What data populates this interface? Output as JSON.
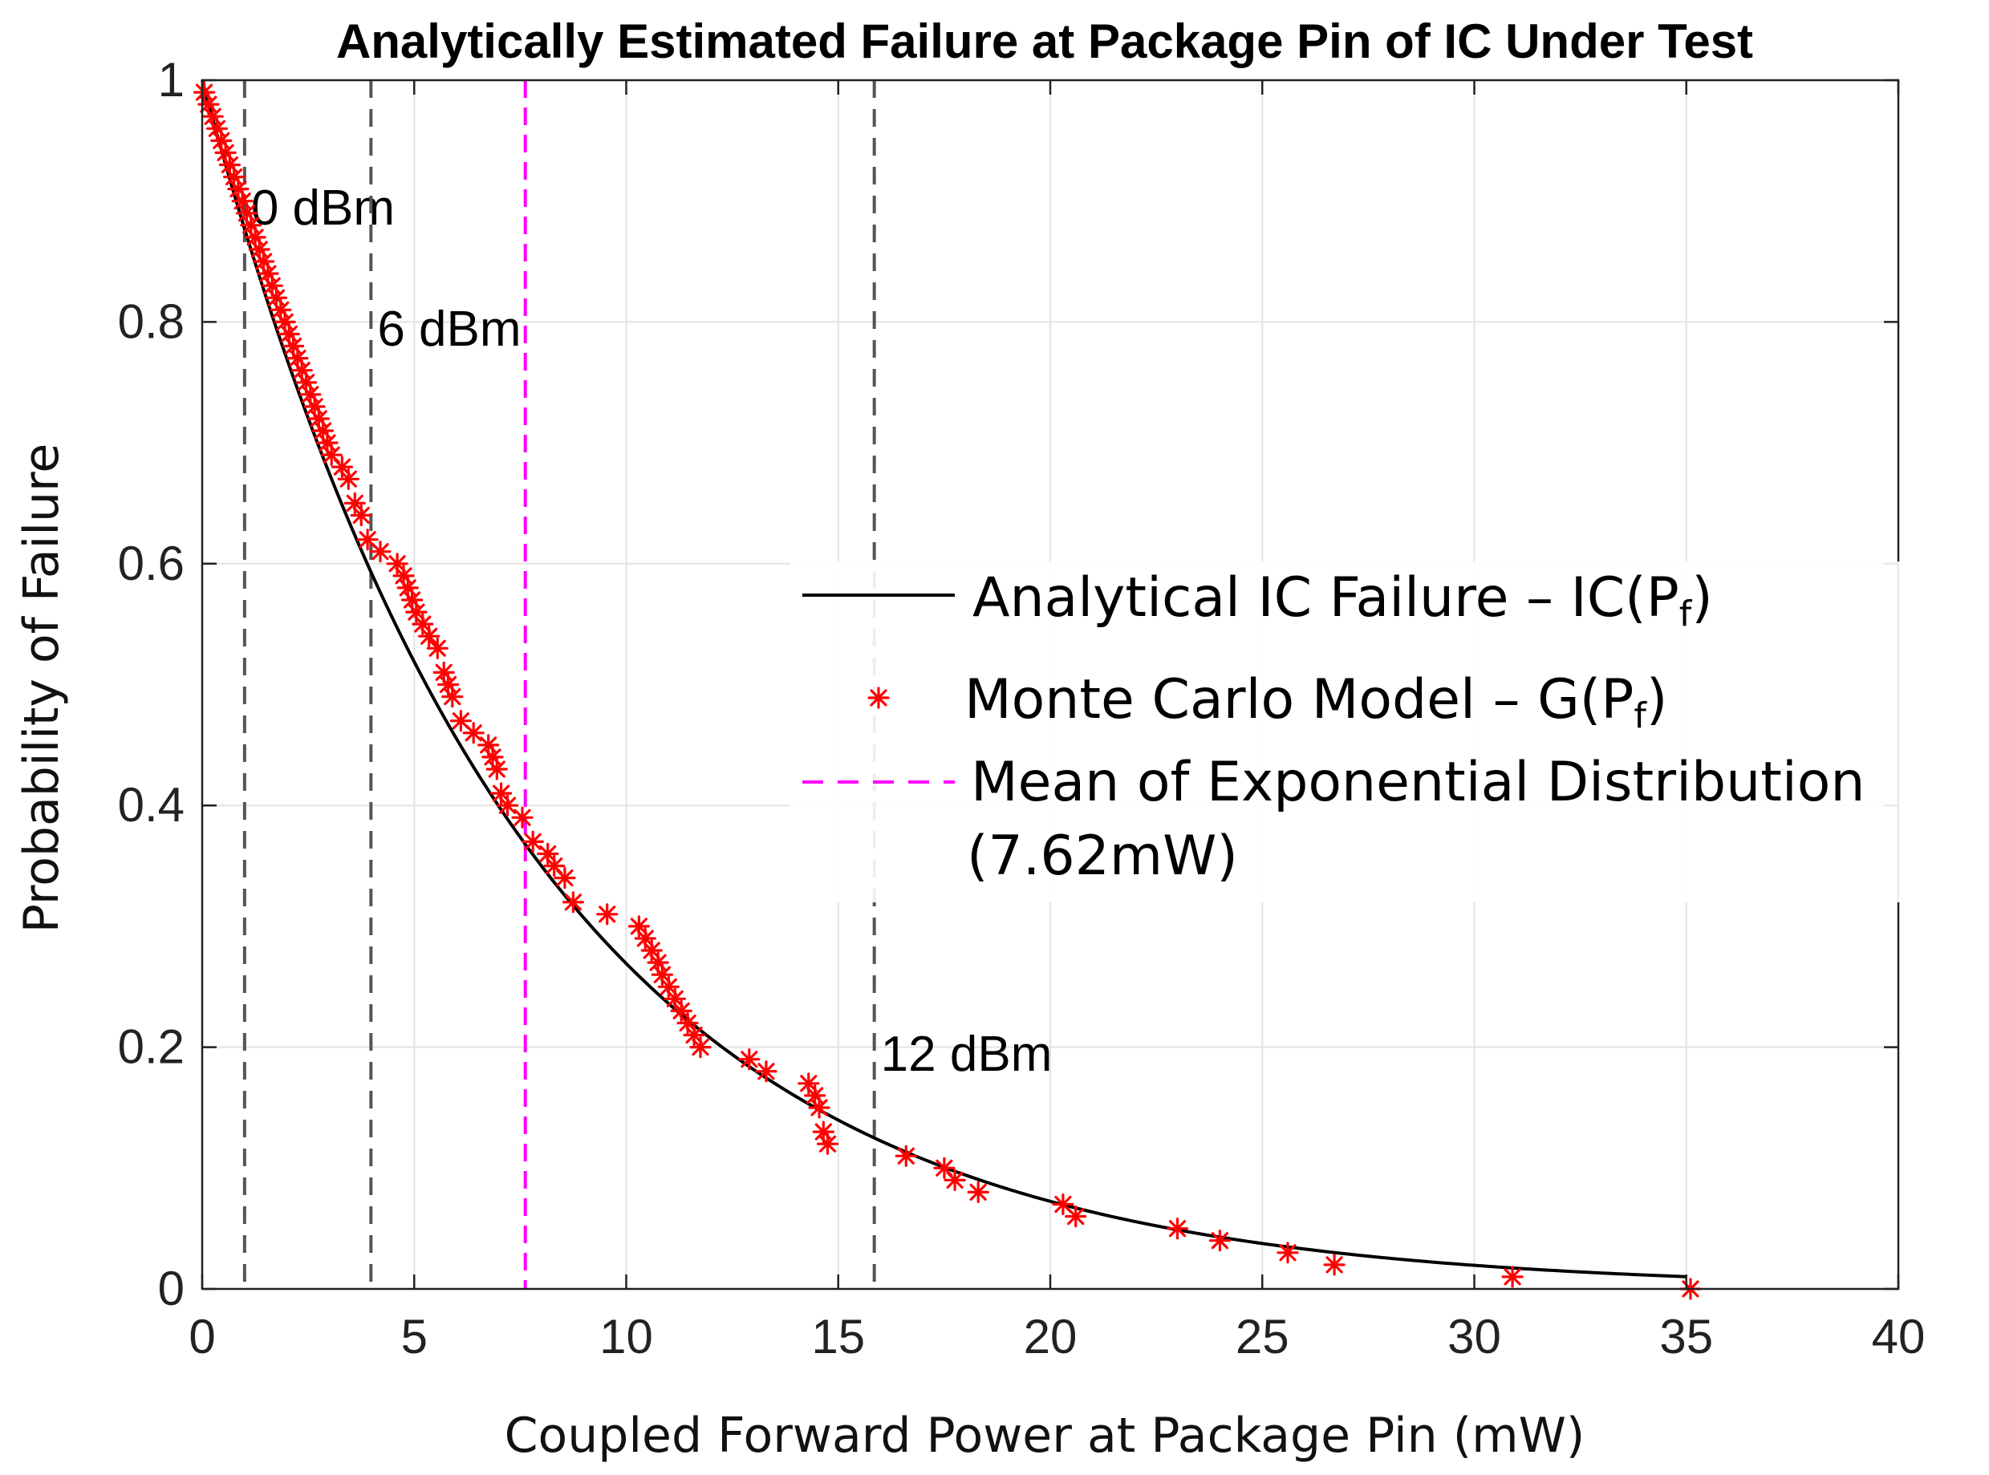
{
  "chart_data": {
    "type": "line",
    "title": "Analytically Estimated Failure at Package Pin of IC Under Test",
    "xlabel": "Coupled Forward Power at Package Pin (mW)",
    "ylabel": "Probability of Failure",
    "xlim": [
      0,
      40
    ],
    "ylim": [
      0,
      1
    ],
    "xticks": [
      0,
      5,
      10,
      15,
      20,
      25,
      30,
      35,
      40
    ],
    "yticks": [
      0,
      0.2,
      0.4,
      0.6,
      0.8,
      1
    ],
    "ytick_labels": [
      "0",
      "0.2",
      "0.4",
      "0.6",
      "0.8",
      "1"
    ],
    "grid": true,
    "legend_position": "center-right",
    "analytical": {
      "name": "Analytical IC Failure – IC(P",
      "subscript": "f",
      "suffix": ")",
      "function": "exp(-x/7.62)",
      "mean_mW": 7.62,
      "x_range": [
        0,
        35
      ],
      "color": "#000000"
    },
    "monte_carlo": {
      "name": "Monte Carlo Model – G(P",
      "subscript": "f",
      "suffix": ")",
      "color": "#ff0000",
      "x": [
        0.05,
        0.15,
        0.25,
        0.35,
        0.45,
        0.55,
        0.65,
        0.75,
        0.85,
        0.95,
        1.05,
        1.15,
        1.25,
        1.35,
        1.45,
        1.55,
        1.65,
        1.75,
        1.85,
        1.95,
        2.05,
        2.15,
        2.25,
        2.35,
        2.45,
        2.55,
        2.65,
        2.75,
        2.85,
        2.95,
        3.05,
        3.3,
        3.45,
        3.6,
        3.75,
        3.9,
        4.2,
        4.6,
        4.75,
        4.85,
        4.95,
        5.05,
        5.2,
        5.35,
        5.55,
        5.7,
        5.8,
        5.9,
        6.1,
        6.4,
        6.75,
        6.85,
        6.95,
        7.05,
        7.2,
        7.55,
        7.8,
        8.15,
        8.3,
        8.55,
        8.75,
        9.55,
        10.3,
        10.45,
        10.6,
        10.75,
        10.85,
        11.0,
        11.15,
        11.3,
        11.45,
        11.6,
        11.75,
        12.9,
        13.3,
        14.3,
        14.45,
        14.55,
        14.65,
        14.75,
        16.6,
        17.5,
        17.75,
        18.3,
        20.3,
        20.6,
        23.0,
        24.0,
        25.6,
        26.7,
        30.9,
        35.1
      ],
      "y": [
        0.99,
        0.98,
        0.97,
        0.96,
        0.95,
        0.94,
        0.93,
        0.92,
        0.91,
        0.9,
        0.89,
        0.88,
        0.87,
        0.86,
        0.85,
        0.84,
        0.83,
        0.82,
        0.81,
        0.8,
        0.79,
        0.78,
        0.77,
        0.76,
        0.75,
        0.74,
        0.73,
        0.72,
        0.71,
        0.7,
        0.69,
        0.68,
        0.67,
        0.65,
        0.64,
        0.62,
        0.61,
        0.6,
        0.59,
        0.58,
        0.57,
        0.56,
        0.55,
        0.54,
        0.53,
        0.51,
        0.5,
        0.49,
        0.47,
        0.46,
        0.45,
        0.44,
        0.43,
        0.41,
        0.4,
        0.39,
        0.37,
        0.36,
        0.35,
        0.34,
        0.32,
        0.31,
        0.3,
        0.29,
        0.28,
        0.27,
        0.26,
        0.25,
        0.24,
        0.23,
        0.22,
        0.21,
        0.2,
        0.19,
        0.18,
        0.17,
        0.16,
        0.15,
        0.13,
        0.12,
        0.11,
        0.1,
        0.09,
        0.08,
        0.07,
        0.06,
        0.05,
        0.04,
        0.03,
        0.02,
        0.01,
        0.0
      ]
    },
    "mean_line": {
      "name": "Mean of Exponential Distribution",
      "name_line2": "(7.62mW)",
      "x": 7.62,
      "color": "#ff00ff"
    },
    "reference_lines": [
      {
        "x": 1.0,
        "label": "0 dBm",
        "color": "#555555"
      },
      {
        "x": 3.98,
        "label": "6 dBm",
        "color": "#555555"
      },
      {
        "x": 15.85,
        "label": "12 dBm",
        "color": "#555555"
      }
    ]
  }
}
